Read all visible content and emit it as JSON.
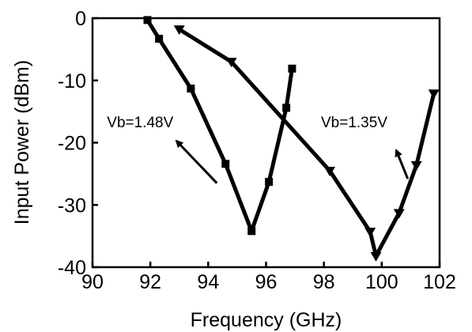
{
  "chart_data": {
    "type": "line",
    "title": "",
    "xlabel": "Frequency (GHz)",
    "ylabel": "Input Power (dBm)",
    "xlim": [
      90,
      102
    ],
    "ylim": [
      -40,
      0
    ],
    "xticks": [
      90,
      92,
      94,
      96,
      98,
      100,
      102
    ],
    "yticks": [
      0,
      -10,
      -20,
      -30,
      -40
    ],
    "grid": false,
    "legend": "none",
    "series": [
      {
        "marker": "square",
        "color": "#000000",
        "x": [
          91.9,
          92.3,
          93.4,
          94.6,
          95.5,
          96.1,
          96.7,
          96.9
        ],
        "y": [
          -0.3,
          -3.3,
          -11.3,
          -23.4,
          -34.2,
          -26.3,
          -14.4,
          -8.1
        ]
      },
      {
        "marker": "triangle-down",
        "color": "#000000",
        "x": [
          93.0,
          94.8,
          98.2,
          99.6,
          99.8,
          100.6,
          101.2,
          101.8
        ],
        "y": [
          -1.8,
          -7.0,
          -24.5,
          -34.3,
          -38.2,
          -31.3,
          -23.6,
          -12.1
        ]
      }
    ],
    "annotations": [
      {
        "text": "Vb=1.48V",
        "x": 90.5,
        "y": -17.5,
        "arrow_from": [
          94.3,
          -26.5
        ],
        "arrow_to": [
          92.9,
          -19.7
        ]
      },
      {
        "text": "Vb=1.35V",
        "x": 97.9,
        "y": -17.5,
        "arrow_from": [
          100.9,
          -25.8
        ],
        "arrow_to": [
          100.5,
          -21.2
        ]
      }
    ]
  }
}
